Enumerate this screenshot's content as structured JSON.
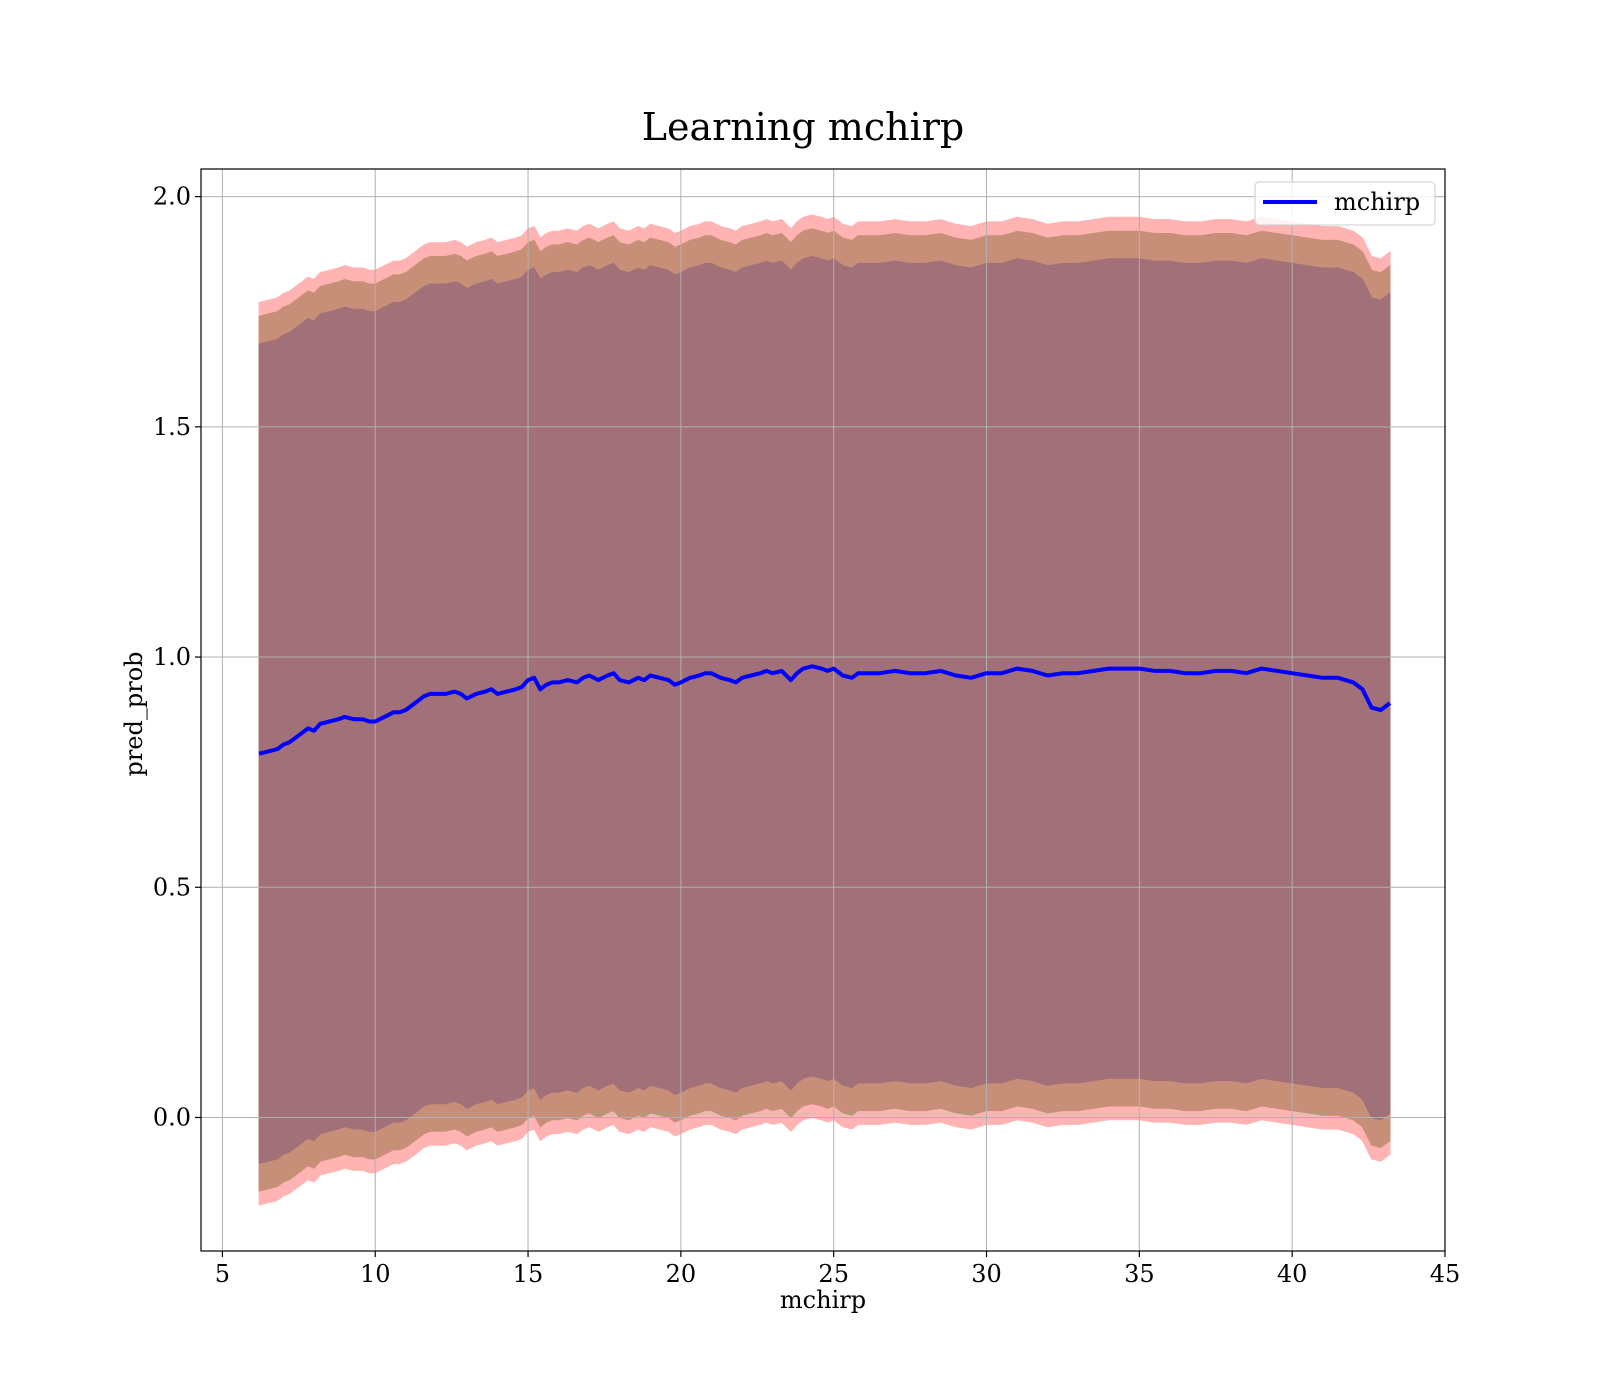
{
  "chart_data": {
    "type": "line",
    "title": "Learning mchirp",
    "xlabel": "mchirp",
    "ylabel": "pred_prob",
    "xlim": [
      4.3,
      45
    ],
    "ylim": [
      -0.29,
      2.06
    ],
    "xticks": [
      5,
      10,
      15,
      20,
      25,
      30,
      35,
      40,
      45
    ],
    "xtick_labels": [
      "5",
      "10",
      "15",
      "20",
      "25",
      "30",
      "35",
      "40",
      "45"
    ],
    "yticks": [
      0.0,
      0.5,
      1.0,
      1.5,
      2.0
    ],
    "ytick_labels": [
      "0.0",
      "0.5",
      "1.0",
      "1.5",
      "2.0"
    ],
    "grid": true,
    "legend": {
      "position": "top-right",
      "entries": [
        "mchirp"
      ]
    },
    "colors": {
      "line": "#0000ff",
      "outer_band": "#ffb3b3",
      "middle_band": "#c88f78",
      "inner_band": "#a17079",
      "grid": "#b0b0b0"
    },
    "series": [
      {
        "name": "mchirp",
        "x": [
          6.2,
          6.5,
          6.8,
          7.0,
          7.2,
          7.5,
          7.8,
          8.0,
          8.2,
          8.5,
          8.8,
          9.0,
          9.3,
          9.6,
          9.8,
          10.0,
          10.3,
          10.6,
          10.8,
          11.0,
          11.3,
          11.6,
          11.8,
          12.0,
          12.3,
          12.6,
          12.8,
          13.0,
          13.3,
          13.6,
          13.8,
          14.0,
          14.3,
          14.6,
          14.8,
          15.0,
          15.2,
          15.4,
          15.6,
          15.8,
          16.0,
          16.3,
          16.6,
          16.8,
          17.0,
          17.3,
          17.6,
          17.8,
          18.0,
          18.3,
          18.6,
          18.8,
          19.0,
          19.3,
          19.6,
          19.8,
          20.0,
          20.3,
          20.6,
          20.8,
          21.0,
          21.3,
          21.6,
          21.8,
          22.0,
          22.3,
          22.6,
          22.8,
          23.0,
          23.3,
          23.6,
          23.8,
          24.0,
          24.3,
          24.6,
          24.8,
          25.0,
          25.3,
          25.6,
          25.8,
          26.0,
          26.5,
          27.0,
          27.5,
          28.0,
          28.5,
          29.0,
          29.5,
          30.0,
          30.5,
          31.0,
          31.5,
          32.0,
          32.5,
          33.0,
          33.5,
          34.0,
          34.5,
          35.0,
          35.5,
          36.0,
          36.5,
          37.0,
          37.5,
          38.0,
          38.5,
          39.0,
          39.5,
          40.0,
          40.5,
          41.0,
          41.5,
          42.0,
          42.3,
          42.6,
          42.9,
          43.2
        ],
        "y": [
          0.79,
          0.795,
          0.8,
          0.81,
          0.815,
          0.83,
          0.845,
          0.84,
          0.855,
          0.86,
          0.865,
          0.87,
          0.865,
          0.865,
          0.86,
          0.86,
          0.87,
          0.88,
          0.88,
          0.885,
          0.9,
          0.915,
          0.92,
          0.92,
          0.92,
          0.925,
          0.92,
          0.91,
          0.92,
          0.925,
          0.93,
          0.92,
          0.925,
          0.93,
          0.935,
          0.95,
          0.955,
          0.93,
          0.94,
          0.945,
          0.945,
          0.95,
          0.945,
          0.955,
          0.96,
          0.95,
          0.96,
          0.965,
          0.95,
          0.945,
          0.955,
          0.95,
          0.96,
          0.955,
          0.95,
          0.94,
          0.945,
          0.955,
          0.96,
          0.965,
          0.965,
          0.955,
          0.95,
          0.945,
          0.955,
          0.96,
          0.965,
          0.97,
          0.965,
          0.97,
          0.95,
          0.965,
          0.975,
          0.98,
          0.975,
          0.97,
          0.975,
          0.96,
          0.955,
          0.965,
          0.965,
          0.965,
          0.97,
          0.965,
          0.965,
          0.97,
          0.96,
          0.955,
          0.965,
          0.965,
          0.975,
          0.97,
          0.96,
          0.965,
          0.965,
          0.97,
          0.975,
          0.975,
          0.975,
          0.97,
          0.97,
          0.965,
          0.965,
          0.97,
          0.97,
          0.965,
          0.975,
          0.97,
          0.965,
          0.96,
          0.955,
          0.955,
          0.945,
          0.93,
          0.89,
          0.885,
          0.9
        ]
      }
    ],
    "bands": [
      {
        "name": "outer",
        "offset": 0.98
      },
      {
        "name": "middle",
        "offset": 0.95
      },
      {
        "name": "inner",
        "offset": 0.89
      }
    ]
  }
}
